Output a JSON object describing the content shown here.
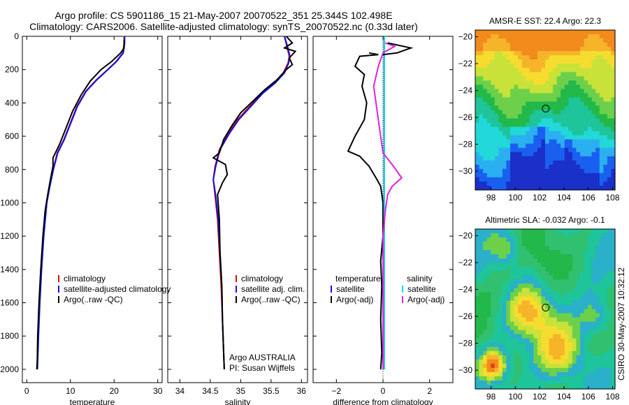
{
  "header": {
    "line1": "Argo profile: CS 5901186_15 21-May-2007 20070522_351 25.344S 102.498E",
    "line2": "Climatology: CARS2006. Satellite-adjusted climatology: synTS_20070522.nc (0.33d later)"
  },
  "side_text": "CSIRO 30-May-2007 10:32:12",
  "colors": {
    "climatology": "#d01010",
    "satellite": "#1010e0",
    "argo": "#000000",
    "satellite_sal": "#00d8e8",
    "argo_sal_adj": "#e020e0"
  },
  "chart_data": [
    {
      "id": "temperature-profile",
      "type": "line",
      "xlabel": "temperature",
      "xlim": [
        -1,
        31
      ],
      "ylim": [
        2080,
        0
      ],
      "xticks": [
        0,
        10,
        20,
        30
      ],
      "yticks": [
        0,
        200,
        400,
        600,
        800,
        1000,
        1200,
        1400,
        1600,
        1800,
        2000
      ],
      "legend": [
        "climatology",
        "satellite-adjusted climatology",
        "Argo(..raw -QC)"
      ],
      "series": [
        {
          "name": "climatology",
          "key": "climatology",
          "points": [
            [
              22.3,
              0
            ],
            [
              22.3,
              40
            ],
            [
              22.0,
              100
            ],
            [
              20.5,
              150
            ],
            [
              18.5,
              200
            ],
            [
              16.0,
              260
            ],
            [
              13.5,
              330
            ],
            [
              11.5,
              420
            ],
            [
              10.0,
              520
            ],
            [
              8.5,
              620
            ],
            [
              7.0,
              700
            ],
            [
              6.0,
              800
            ],
            [
              5.2,
              900
            ],
            [
              4.5,
              1000
            ],
            [
              3.8,
              1200
            ],
            [
              3.3,
              1400
            ],
            [
              2.9,
              1600
            ],
            [
              2.6,
              1800
            ],
            [
              2.4,
              2000
            ]
          ]
        },
        {
          "name": "satellite-adjusted climatology",
          "key": "satellite",
          "points": [
            [
              22.4,
              0
            ],
            [
              22.4,
              40
            ],
            [
              22.1,
              100
            ],
            [
              20.6,
              150
            ],
            [
              18.6,
              200
            ],
            [
              16.1,
              260
            ],
            [
              13.6,
              330
            ],
            [
              11.6,
              420
            ],
            [
              10.1,
              520
            ],
            [
              8.6,
              620
            ],
            [
              7.1,
              700
            ],
            [
              6.1,
              800
            ],
            [
              5.3,
              900
            ],
            [
              4.6,
              1000
            ],
            [
              3.9,
              1200
            ],
            [
              3.4,
              1400
            ],
            [
              3.0,
              1600
            ],
            [
              2.7,
              1800
            ],
            [
              2.45,
              2000
            ]
          ]
        },
        {
          "name": "Argo(..raw -QC)",
          "key": "argo",
          "points": [
            [
              22.3,
              20
            ],
            [
              22.3,
              70
            ],
            [
              21.5,
              100
            ],
            [
              19.5,
              150
            ],
            [
              17.0,
              200
            ],
            [
              14.5,
              270
            ],
            [
              12.5,
              350
            ],
            [
              10.5,
              450
            ],
            [
              9.0,
              550
            ],
            [
              7.5,
              650
            ],
            [
              6.0,
              730
            ],
            [
              6.0,
              780
            ],
            [
              5.5,
              850
            ],
            [
              4.8,
              950
            ],
            [
              4.2,
              1050
            ],
            [
              3.7,
              1200
            ],
            [
              3.2,
              1400
            ],
            [
              2.8,
              1600
            ],
            [
              2.5,
              1800
            ],
            [
              2.4,
              1950
            ],
            [
              2.3,
              2000
            ]
          ]
        }
      ]
    },
    {
      "id": "salinity-profile",
      "type": "line",
      "xlabel": "salinity",
      "xlim": [
        33.8,
        36.1
      ],
      "ylim": [
        2080,
        0
      ],
      "xticks": [
        34,
        34.5,
        35,
        35.5,
        36
      ],
      "legend": [
        "climatology",
        "satellite adj. clim.",
        "Argo(..raw -QC)"
      ],
      "annotation": [
        "Argo AUSTRALIA",
        "PI: Susan Wijffels"
      ],
      "series": [
        {
          "name": "climatology",
          "key": "climatology",
          "points": [
            [
              35.72,
              0
            ],
            [
              35.76,
              60
            ],
            [
              35.8,
              120
            ],
            [
              35.78,
              160
            ],
            [
              35.7,
              220
            ],
            [
              35.55,
              280
            ],
            [
              35.35,
              340
            ],
            [
              35.15,
              420
            ],
            [
              34.95,
              500
            ],
            [
              34.8,
              580
            ],
            [
              34.65,
              680
            ],
            [
              34.58,
              780
            ],
            [
              34.55,
              860
            ],
            [
              34.58,
              960
            ],
            [
              34.62,
              1100
            ],
            [
              34.65,
              1300
            ],
            [
              34.68,
              1500
            ],
            [
              34.7,
              1700
            ],
            [
              34.72,
              1900
            ],
            [
              34.73,
              2000
            ]
          ]
        },
        {
          "name": "satellite adj. clim.",
          "key": "satellite",
          "points": [
            [
              35.72,
              0
            ],
            [
              35.77,
              60
            ],
            [
              35.81,
              120
            ],
            [
              35.79,
              160
            ],
            [
              35.72,
              220
            ],
            [
              35.57,
              280
            ],
            [
              35.37,
              340
            ],
            [
              35.17,
              420
            ],
            [
              34.97,
              500
            ],
            [
              34.82,
              580
            ],
            [
              34.66,
              680
            ],
            [
              34.59,
              780
            ],
            [
              34.55,
              860
            ],
            [
              34.59,
              960
            ],
            [
              34.63,
              1100
            ],
            [
              34.66,
              1300
            ],
            [
              34.69,
              1500
            ],
            [
              34.7,
              1700
            ],
            [
              34.72,
              1900
            ],
            [
              34.73,
              2000
            ]
          ]
        },
        {
          "name": "Argo(..raw -QC)",
          "key": "argo",
          "points": [
            [
              35.75,
              0
            ],
            [
              35.85,
              40
            ],
            [
              35.72,
              70
            ],
            [
              35.9,
              90
            ],
            [
              35.8,
              130
            ],
            [
              35.85,
              170
            ],
            [
              35.75,
              200
            ],
            [
              35.6,
              260
            ],
            [
              35.4,
              320
            ],
            [
              35.2,
              390
            ],
            [
              35.0,
              460
            ],
            [
              34.85,
              540
            ],
            [
              34.72,
              620
            ],
            [
              34.65,
              700
            ],
            [
              34.55,
              730
            ],
            [
              34.75,
              770
            ],
            [
              34.78,
              830
            ],
            [
              34.7,
              880
            ],
            [
              34.62,
              950
            ],
            [
              34.65,
              1100
            ],
            [
              34.66,
              1300
            ],
            [
              34.69,
              1500
            ],
            [
              34.7,
              1700
            ],
            [
              34.72,
              1900
            ],
            [
              34.73,
              2000
            ]
          ]
        }
      ]
    },
    {
      "id": "difference-profile",
      "type": "line",
      "xlabel": "difference from climatology",
      "xlim": [
        -3,
        3
      ],
      "ylim": [
        2080,
        0
      ],
      "xticks": [
        -2,
        0,
        2
      ],
      "xtick_labels": [
        "−2",
        "0",
        "2"
      ],
      "legend_left_title": "temperature",
      "legend_right_title": "salinity",
      "legend_left": [
        "satellite",
        "Argo(-adj)"
      ],
      "legend_right": [
        "satellite",
        "Argo(-adj)"
      ],
      "series": [
        {
          "name": "temperature satellite",
          "key": "satellite",
          "points": [
            [
              0.05,
              0
            ],
            [
              0.05,
              500
            ],
            [
              0.05,
              1000
            ],
            [
              0.05,
              1500
            ],
            [
              0.05,
              2000
            ]
          ]
        },
        {
          "name": "temperature Argo(-adj)",
          "key": "argo",
          "points": [
            [
              -0.6,
              100
            ],
            [
              -0.2,
              110
            ],
            [
              -1.0,
              120
            ],
            [
              -1.2,
              180
            ],
            [
              -0.8,
              230
            ],
            [
              -0.9,
              300
            ],
            [
              -0.7,
              400
            ],
            [
              -0.8,
              500
            ],
            [
              -1.2,
              600
            ],
            [
              -1.5,
              690
            ],
            [
              -1.0,
              720
            ],
            [
              -0.6,
              780
            ],
            [
              -0.3,
              850
            ],
            [
              -0.1,
              900
            ],
            [
              0.0,
              1000
            ],
            [
              0.0,
              1200
            ],
            [
              -0.1,
              1350
            ],
            [
              -0.05,
              1500
            ],
            [
              -0.1,
              1700
            ],
            [
              -0.05,
              1900
            ],
            [
              -0.1,
              2000
            ]
          ]
        },
        {
          "name": "salinity satellite",
          "key": "satellite_sal",
          "points": [
            [
              0.05,
              0
            ],
            [
              0.05,
              500
            ],
            [
              0.05,
              1000
            ],
            [
              0.05,
              1500
            ],
            [
              0.05,
              2000
            ]
          ]
        },
        {
          "name": "salinity Argo(-adj)",
          "key": "argo_sal_adj",
          "points": [
            [
              0.1,
              40
            ],
            [
              0.5,
              60
            ],
            [
              0.0,
              100
            ],
            [
              -0.2,
              180
            ],
            [
              -0.4,
              300
            ],
            [
              -0.3,
              400
            ],
            [
              -0.2,
              500
            ],
            [
              -0.1,
              600
            ],
            [
              0.0,
              700
            ],
            [
              0.5,
              790
            ],
            [
              0.8,
              850
            ],
            [
              0.4,
              900
            ],
            [
              0.2,
              950
            ],
            [
              0.1,
              1050
            ],
            [
              0.0,
              1200
            ],
            [
              0.0,
              1500
            ],
            [
              0.0,
              2000
            ]
          ]
        },
        {
          "name": "salinity Argo(-adj) surface spike",
          "key": "argo",
          "points": [
            [
              0.2,
              40
            ],
            [
              1.2,
              70
            ],
            [
              0.6,
              100
            ],
            [
              0.0,
              110
            ]
          ]
        }
      ]
    },
    {
      "id": "sst-map",
      "type": "heatmap",
      "title": "AMSR-E SST: 22.4 Argo: 22.3",
      "xlim": [
        96.7,
        108.2
      ],
      "ylim": [
        -31.4,
        -19.5
      ],
      "xticks": [
        98,
        100,
        102,
        104,
        106,
        108
      ],
      "yticks": [
        -20,
        -22,
        -24,
        -26,
        -28,
        -30
      ],
      "marker": [
        102.498,
        -25.344
      ],
      "colors": [
        "#f28a1c",
        "#f5b42a",
        "#f6dc2e",
        "#c8e23a",
        "#6cd04a",
        "#22b84a",
        "#1ec49a",
        "#22d8d8",
        "#2ab0f0",
        "#1a60f0",
        "#1a30c8"
      ]
    },
    {
      "id": "sla-map",
      "type": "heatmap",
      "title": "Altimetric SLA: -0.032 Argo: -0.1",
      "xlim": [
        96.7,
        108.2
      ],
      "ylim": [
        -31.4,
        -19.5
      ],
      "xticks": [
        98,
        100,
        102,
        104,
        106,
        108
      ],
      "yticks": [
        -20,
        -22,
        -24,
        -26,
        -28,
        -30
      ],
      "marker": [
        102.498,
        -25.344
      ],
      "colors": [
        "#22b84a",
        "#30c070",
        "#1ec49a",
        "#2ab0c8",
        "#6cd04a",
        "#c8e23a",
        "#f6dc2e",
        "#f5b42a",
        "#f28a1c",
        "#e0401a"
      ]
    }
  ]
}
